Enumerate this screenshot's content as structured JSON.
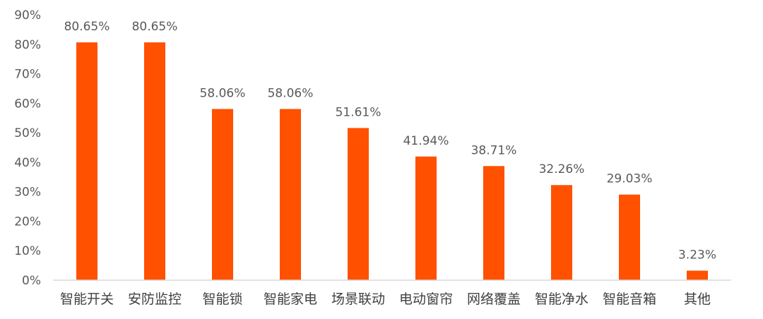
{
  "chart_data": {
    "type": "bar",
    "title": "",
    "xlabel": "",
    "ylabel": "",
    "categories": [
      "智能开关",
      "安防监控",
      "智能锁",
      "智能家电",
      "场景联动",
      "电动窗帘",
      "网络覆盖",
      "智能净水",
      "智能音箱",
      "其他"
    ],
    "values": [
      80.65,
      80.65,
      58.06,
      58.06,
      51.61,
      41.94,
      38.71,
      32.26,
      29.03,
      3.23
    ],
    "value_labels": [
      "80.65%",
      "80.65%",
      "58.06%",
      "58.06%",
      "51.61%",
      "41.94%",
      "38.71%",
      "32.26%",
      "29.03%",
      "3.23%"
    ],
    "y_ticks": [
      0,
      10,
      20,
      30,
      40,
      50,
      60,
      70,
      80,
      90
    ],
    "y_tick_labels": [
      "0%",
      "10%",
      "20%",
      "30%",
      "40%",
      "50%",
      "60%",
      "70%",
      "80%",
      "90%"
    ],
    "ylim": [
      0,
      90
    ],
    "grid": false,
    "bar_color": "#FF5100",
    "axis_color": "#D9D9D9"
  }
}
